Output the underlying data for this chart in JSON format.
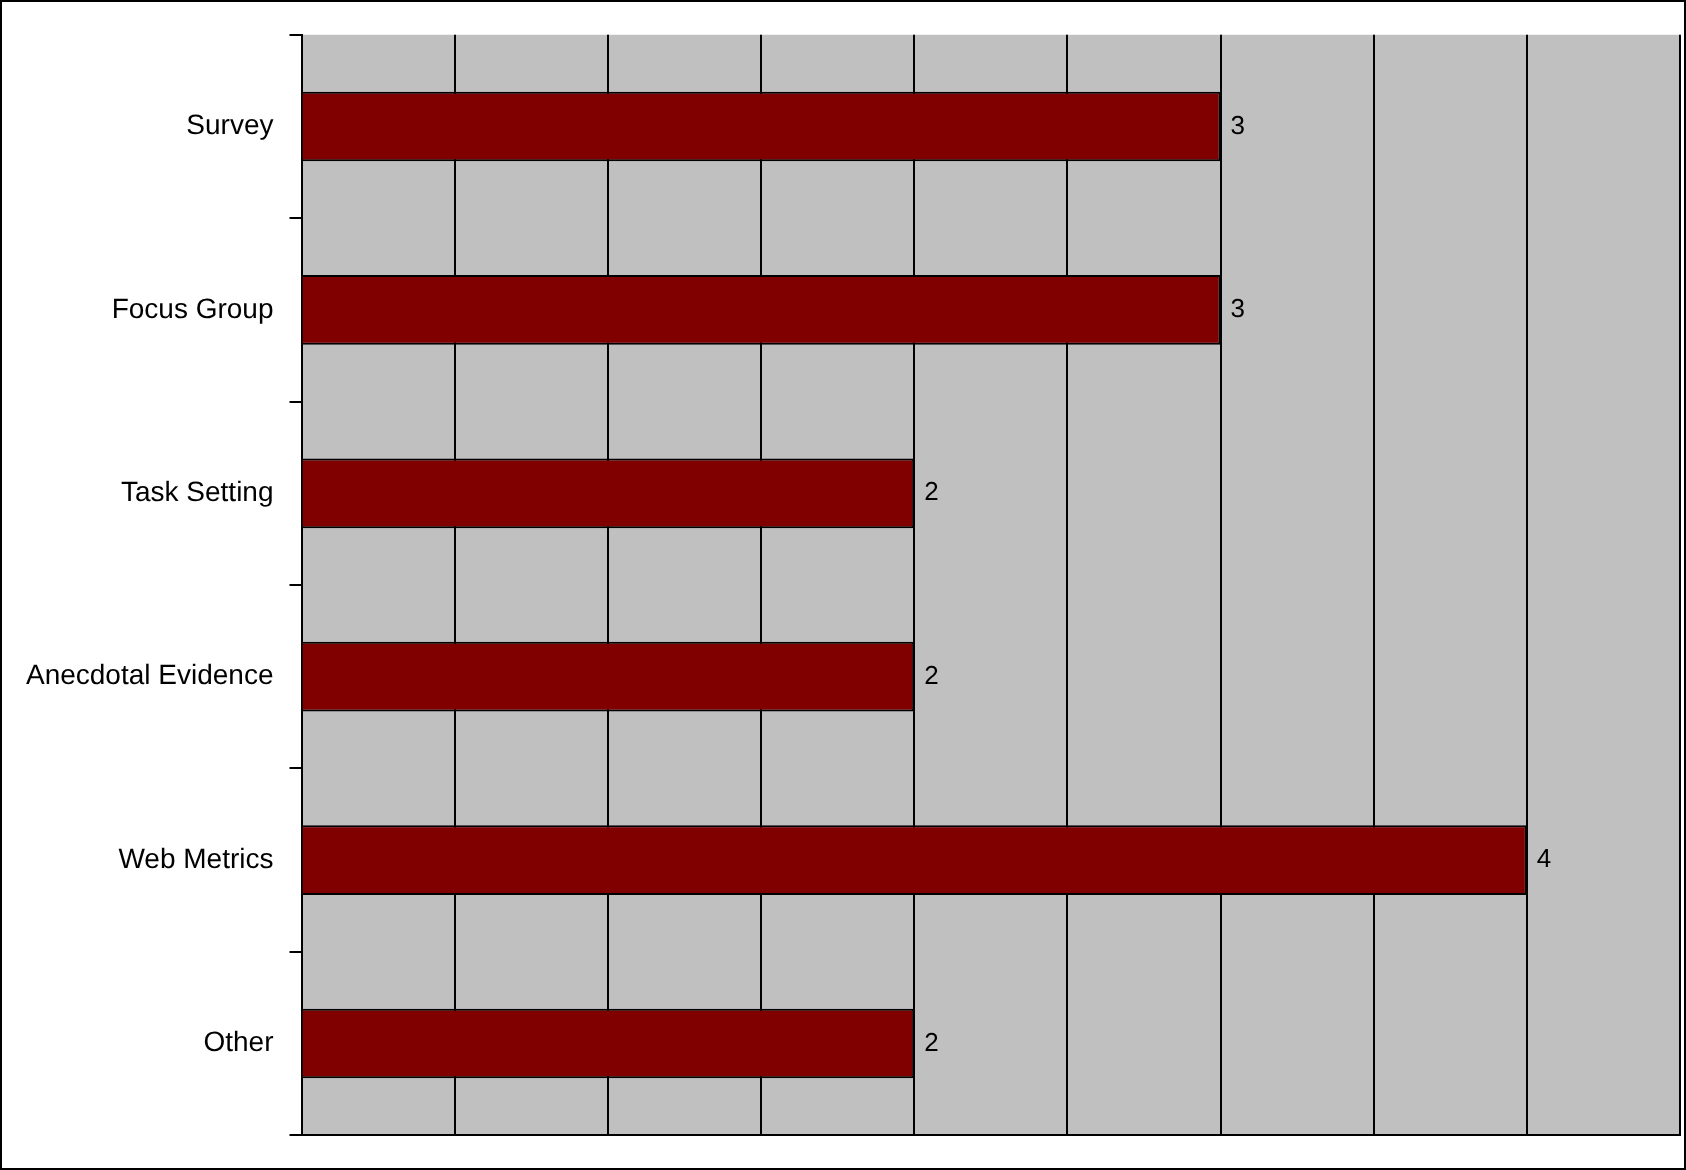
{
  "chart_data": {
    "type": "bar",
    "orientation": "horizontal",
    "categories": [
      "Survey",
      "Focus Group",
      "Task Setting",
      "Anecdotal Evidence",
      "Web Metrics",
      "Other"
    ],
    "values": [
      3,
      3,
      2,
      2,
      4,
      2
    ],
    "color": "#800000",
    "xlim": [
      0,
      4.5
    ],
    "xticks": [
      {
        "value": 0,
        "label": null
      },
      {
        "value": 0.5,
        "label": null
      },
      {
        "value": 1,
        "label": null
      },
      {
        "value": 1.5,
        "label": null
      },
      {
        "value": 2,
        "label": null
      },
      {
        "value": 2.5,
        "label": null
      },
      {
        "value": 3,
        "label": null
      },
      {
        "value": 3.5,
        "label": null
      },
      {
        "value": 4,
        "label": null
      },
      {
        "value": 4.5,
        "label": null
      }
    ],
    "grid": "x",
    "tick_labels": "y",
    "data_labels": true,
    "legend": false
  }
}
